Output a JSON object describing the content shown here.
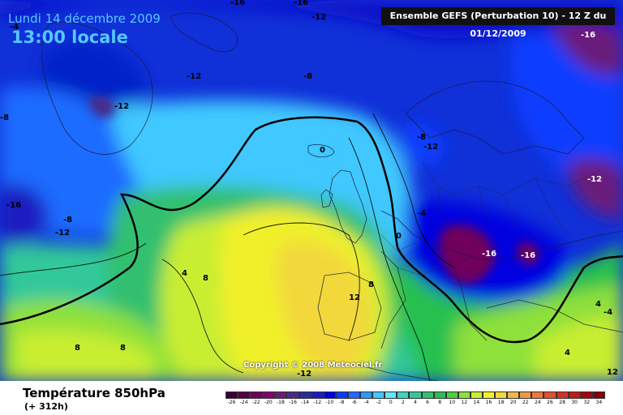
{
  "header": {
    "date": "Lundi 14 décembre 2009",
    "time": "13:00 locale",
    "run": "Ensemble GEFS (Perturbation 10)  -  12 Z du 01/12/2009"
  },
  "copyright": "Copyright © 2008 Meteociel.fr",
  "footer": {
    "title": "Température 850hPa",
    "lead": "(+ 312h)"
  },
  "scale": {
    "ticks": [
      "-26",
      "-24",
      "-22",
      "-20",
      "-18",
      "-16",
      "-14",
      "-12",
      "-10",
      "-8",
      "-6",
      "-4",
      "-2",
      "0",
      "2",
      "4",
      "6",
      "8",
      "10",
      "12",
      "14",
      "16",
      "18",
      "20",
      "22",
      "24",
      "26",
      "28",
      "30",
      "32",
      "34"
    ],
    "colors": [
      "#3b0030",
      "#560046",
      "#70005c",
      "#880070",
      "#6a1a7a",
      "#4c2a88",
      "#2a2aa0",
      "#1a1ac0",
      "#0000e0",
      "#0a3cff",
      "#1e6cff",
      "#2a9aff",
      "#40c8ff",
      "#60e6ff",
      "#3cd6c0",
      "#30c89a",
      "#30c070",
      "#28c050",
      "#4cd040",
      "#8ee03a",
      "#c8ee30",
      "#f0f02a",
      "#f2d83a",
      "#f0b840",
      "#f09840",
      "#f07838",
      "#e85030",
      "#d83028",
      "#c01818",
      "#a00810",
      "#800010"
    ]
  },
  "contour_labels": [
    "-16",
    "-16",
    "-12",
    "-12",
    "-12",
    "-8",
    "-4",
    "-8",
    "-12",
    "-16",
    "-8",
    "-12",
    "-16",
    "-8",
    "-12",
    "0",
    "-4",
    "0",
    "4",
    "8",
    "8",
    "12",
    "-16",
    "-16",
    "4",
    "4",
    "12",
    "8",
    "8",
    "-12",
    "-4"
  ]
}
